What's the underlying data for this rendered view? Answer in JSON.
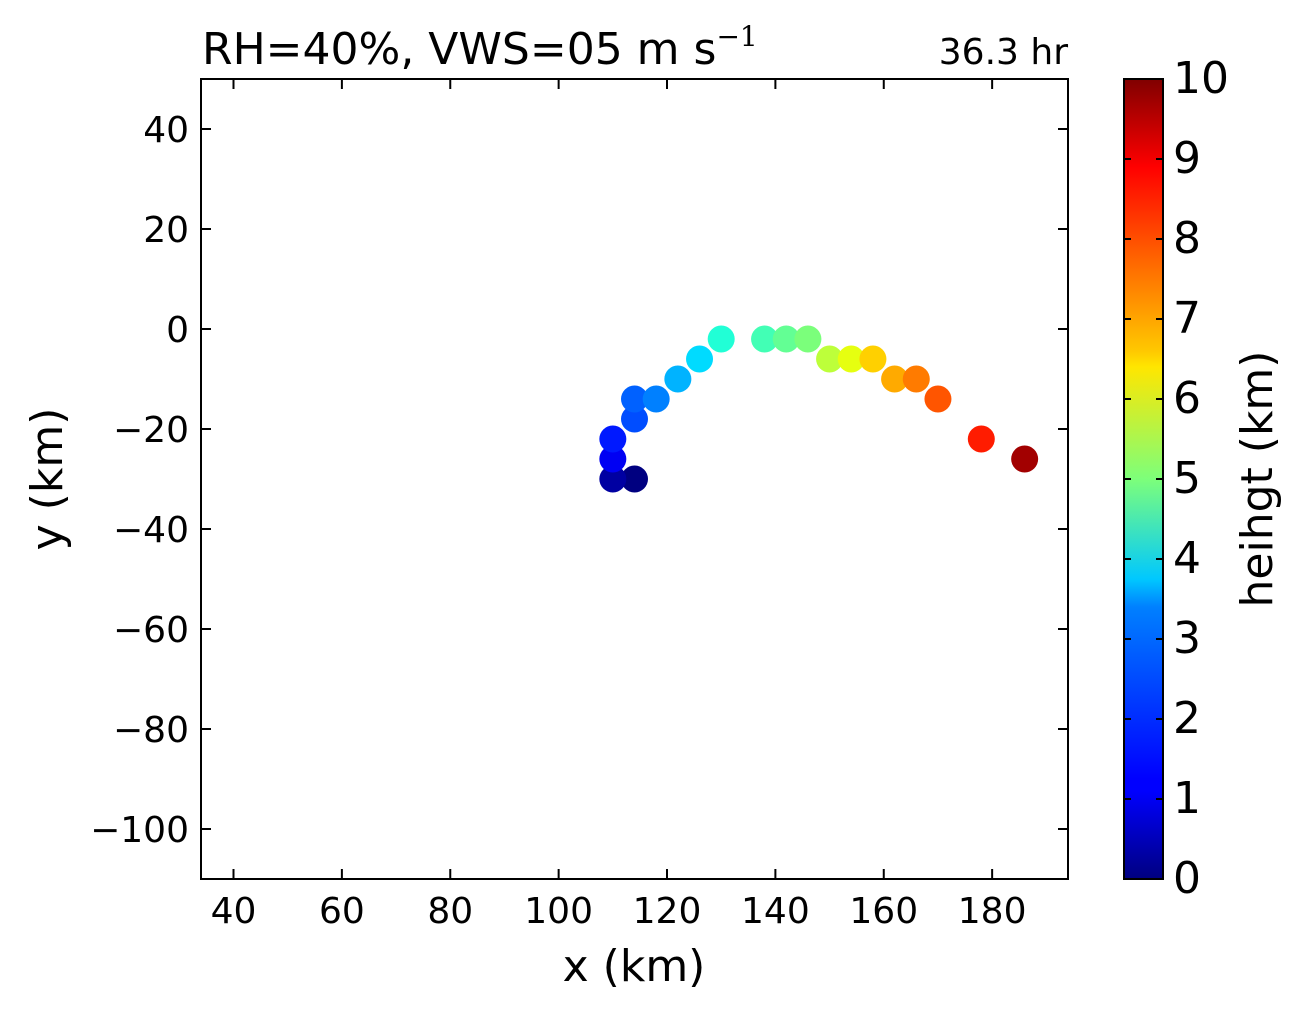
{
  "chart_data": {
    "type": "scatter",
    "title": {
      "prefix": "RH=40%, VWS=05 m s",
      "superscript": "−1"
    },
    "time_label": "36.3 hr",
    "time_label_color": "#0000ff",
    "xlabel": "x (km)",
    "ylabel": "y (km)",
    "xlim": [
      34,
      194
    ],
    "ylim": [
      -110,
      50
    ],
    "xticks": [
      40,
      60,
      80,
      100,
      120,
      140,
      160,
      180
    ],
    "xtick_labels": [
      "40",
      "60",
      "80",
      "100",
      "120",
      "140",
      "160",
      "180"
    ],
    "yticks": [
      40,
      20,
      0,
      -20,
      -40,
      -60,
      -80,
      -100
    ],
    "ytick_labels": [
      "40",
      "20",
      "0",
      "−20",
      "−40",
      "−60",
      "−80",
      "−100"
    ],
    "grid": false,
    "colorbar": {
      "label": "heihgt (km)",
      "range": [
        0,
        10
      ],
      "colormap": "jet",
      "ticks": [
        0,
        1,
        2,
        3,
        4,
        5,
        6,
        7,
        8,
        9,
        10
      ],
      "tick_labels": [
        "0",
        "1",
        "2",
        "3",
        "4",
        "5",
        "6",
        "7",
        "8",
        "9",
        "10"
      ]
    },
    "points": [
      {
        "x": 114,
        "y": -30,
        "height": 0.0
      },
      {
        "x": 110,
        "y": -30,
        "height": 0.3
      },
      {
        "x": 110,
        "y": -26,
        "height": 1.0
      },
      {
        "x": 110,
        "y": -22,
        "height": 1.5
      },
      {
        "x": 114,
        "y": -18,
        "height": 2.0
      },
      {
        "x": 114,
        "y": -14,
        "height": 2.2
      },
      {
        "x": 118,
        "y": -14,
        "height": 2.5
      },
      {
        "x": 122,
        "y": -10,
        "height": 3.0
      },
      {
        "x": 126,
        "y": -6,
        "height": 3.4
      },
      {
        "x": 130,
        "y": -2,
        "height": 3.9
      },
      {
        "x": 138,
        "y": -2,
        "height": 4.3
      },
      {
        "x": 142,
        "y": -2,
        "height": 4.7
      },
      {
        "x": 146,
        "y": -2,
        "height": 5.0
      },
      {
        "x": 150,
        "y": -6,
        "height": 5.8
      },
      {
        "x": 154,
        "y": -6,
        "height": 6.3
      },
      {
        "x": 158,
        "y": -6,
        "height": 6.9
      },
      {
        "x": 162,
        "y": -10,
        "height": 7.3
      },
      {
        "x": 166,
        "y": -10,
        "height": 7.8
      },
      {
        "x": 170,
        "y": -14,
        "height": 8.2
      },
      {
        "x": 178,
        "y": -22,
        "height": 8.8
      },
      {
        "x": 186,
        "y": -26,
        "height": 9.7
      }
    ]
  }
}
